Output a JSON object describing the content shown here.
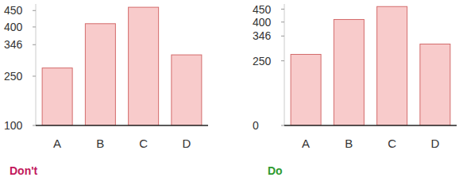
{
  "chart_data": [
    {
      "type": "bar",
      "title": "Don't",
      "categories": [
        "A",
        "B",
        "C",
        "D"
      ],
      "values": [
        275,
        410,
        460,
        315
      ],
      "color": "#f8cbcb",
      "ylim": [
        100,
        470
      ],
      "yticks": [
        100,
        250,
        346,
        400,
        450
      ],
      "grid": false
    },
    {
      "type": "bar",
      "title": "Do",
      "categories": [
        "A",
        "B",
        "C",
        "D"
      ],
      "values": [
        275,
        410,
        460,
        315
      ],
      "color": "#f8cbcb",
      "ylim": [
        0,
        470
      ],
      "yticks": [
        0,
        250,
        346,
        400,
        450
      ],
      "grid": false
    }
  ]
}
